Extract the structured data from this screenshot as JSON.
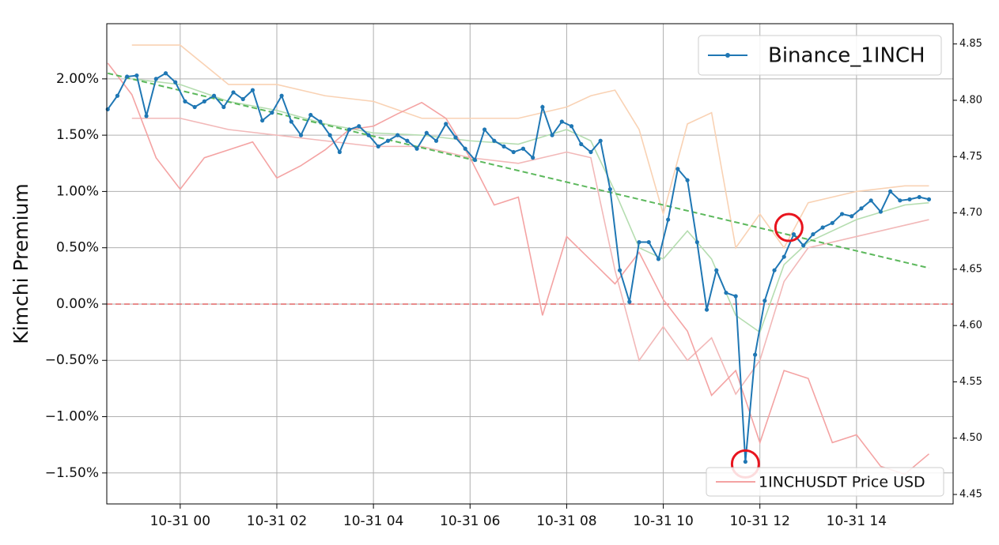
{
  "chart_data": {
    "type": "line",
    "ylabel": "Kimchi Premium",
    "xlim": [
      -1.52,
      16.0
    ],
    "xticks": [
      {
        "value": 0,
        "label": "10-31 00"
      },
      {
        "value": 2,
        "label": "10-31 02"
      },
      {
        "value": 4,
        "label": "10-31 04"
      },
      {
        "value": 6,
        "label": "10-31 06"
      },
      {
        "value": 8,
        "label": "10-31 08"
      },
      {
        "value": 10,
        "label": "10-31 10"
      },
      {
        "value": 12,
        "label": "10-31 12"
      },
      {
        "value": 14,
        "label": "10-31 14"
      }
    ],
    "ylim": [
      -1.775,
      2.49
    ],
    "yticks": [
      {
        "value": -1.5,
        "label": "−1.50%"
      },
      {
        "value": -1,
        "label": "−1.00%"
      },
      {
        "value": -0.5,
        "label": "−0.50%"
      },
      {
        "value": 0,
        "label": "0.00%"
      },
      {
        "value": 0.5,
        "label": "0.50%"
      },
      {
        "value": 1,
        "label": "1.00%"
      },
      {
        "value": 1.5,
        "label": "1.50%"
      },
      {
        "value": 2,
        "label": "2.00%"
      }
    ],
    "y2lim": [
      4.4416,
      4.868
    ],
    "y2ticks": [
      4.45,
      {
        "value": 4.5,
        "label": "4.50"
      },
      4.55,
      {
        "value": 4.6,
        "label": "4.60"
      },
      4.65,
      {
        "value": 4.7,
        "label": "4.70"
      },
      4.75,
      {
        "value": 4.8,
        "label": "4.80"
      },
      4.85
    ],
    "grid": true,
    "series": [
      {
        "color": "#f9d2b4",
        "x": [
          -1,
          0,
          1,
          2,
          3,
          4,
          5,
          6,
          7,
          8,
          8.5,
          9,
          9.5,
          10,
          10.5,
          11,
          11.5,
          12,
          12.5,
          13,
          14,
          15,
          15.5
        ],
        "values": [
          2.3,
          2.3,
          1.95,
          1.95,
          1.85,
          1.8,
          1.65,
          1.65,
          1.65,
          1.75,
          1.85,
          1.9,
          1.55,
          0.8,
          1.6,
          1.7,
          0.5,
          0.8,
          0.5,
          0.9,
          1.0,
          1.05,
          1.05
        ]
      },
      {
        "color": "#f2b8b8",
        "x": [
          -1,
          0,
          1,
          2,
          3,
          4,
          5,
          6,
          7,
          8,
          8.5,
          9,
          9.5,
          10,
          10.5,
          11,
          11.5,
          12,
          12.5,
          13,
          14,
          15,
          15.5
        ],
        "values": [
          1.65,
          1.65,
          1.55,
          1.5,
          1.45,
          1.4,
          1.4,
          1.3,
          1.25,
          1.35,
          1.3,
          0.3,
          -0.5,
          -0.2,
          -0.5,
          -0.3,
          -0.8,
          -0.5,
          0.2,
          0.5,
          0.6,
          0.7,
          0.75
        ]
      },
      {
        "color": "#b5ddb0",
        "x": [
          -1,
          0,
          1,
          2,
          3,
          4,
          5,
          6,
          7,
          8,
          8.5,
          9,
          9.5,
          10,
          10.5,
          11,
          11.5,
          12,
          12.5,
          13,
          14,
          15,
          15.5
        ],
        "values": [
          2.0,
          1.95,
          1.8,
          1.72,
          1.6,
          1.52,
          1.5,
          1.45,
          1.42,
          1.55,
          1.45,
          1.0,
          0.5,
          0.4,
          0.65,
          0.4,
          -0.1,
          -0.25,
          0.35,
          0.55,
          0.75,
          0.88,
          0.9
        ]
      },
      {
        "name": "1INCHUSDT Price USD",
        "color": "#f4a3a3",
        "axis": "y2",
        "x": [
          -1.5,
          -1,
          -0.5,
          0,
          0.5,
          1,
          1.5,
          2,
          2.5,
          3,
          3.5,
          4,
          4.5,
          5,
          5.5,
          6,
          6.5,
          7,
          7.5,
          8,
          8.5,
          9,
          9.5,
          10,
          10.5,
          11,
          11.5,
          12,
          12.5,
          13,
          13.5,
          14,
          14.5,
          15,
          15.5
        ],
        "values": [
          4.833,
          4.805,
          4.749,
          4.721,
          4.749,
          4.756,
          4.763,
          4.731,
          4.742,
          4.756,
          4.774,
          4.777,
          4.788,
          4.798,
          4.784,
          4.749,
          4.707,
          4.714,
          4.609,
          4.679,
          4.658,
          4.637,
          4.665,
          4.623,
          4.595,
          4.538,
          4.56,
          4.496,
          4.56,
          4.553,
          4.496,
          4.503,
          4.475,
          4.468,
          4.486
        ]
      },
      {
        "color": "#5cb85c",
        "dashed": true,
        "x": [
          -1.5,
          15.5
        ],
        "values": [
          2.05,
          0.32
        ]
      },
      {
        "name": "Binance_1INCH",
        "color": "#1f77b4",
        "markers": true,
        "x": [
          -1.5,
          -1.3,
          -1.1,
          -0.9,
          -0.7,
          -0.5,
          -0.3,
          -0.1,
          0.1,
          0.3,
          0.5,
          0.7,
          0.9,
          1.1,
          1.3,
          1.5,
          1.7,
          1.9,
          2.1,
          2.3,
          2.5,
          2.7,
          2.9,
          3.1,
          3.3,
          3.5,
          3.7,
          3.9,
          4.1,
          4.3,
          4.5,
          4.7,
          4.9,
          5.1,
          5.3,
          5.5,
          5.7,
          5.9,
          6.1,
          6.3,
          6.5,
          6.7,
          6.9,
          7.1,
          7.3,
          7.5,
          7.7,
          7.9,
          8.1,
          8.3,
          8.5,
          8.7,
          8.9,
          9.1,
          9.3,
          9.5,
          9.7,
          9.9,
          10.1,
          10.3,
          10.5,
          10.7,
          10.9,
          11.1,
          11.3,
          11.5,
          11.7,
          11.9,
          12.1,
          12.3,
          12.5,
          12.7,
          12.9,
          13.1,
          13.3,
          13.5,
          13.7,
          13.9,
          14.1,
          14.3,
          14.5,
          14.7,
          14.9,
          15.1,
          15.3,
          15.5
        ],
        "values": [
          1.73,
          1.85,
          2.02,
          2.03,
          1.67,
          2.0,
          2.05,
          1.97,
          1.8,
          1.75,
          1.8,
          1.85,
          1.75,
          1.88,
          1.82,
          1.9,
          1.63,
          1.7,
          1.85,
          1.62,
          1.5,
          1.68,
          1.62,
          1.5,
          1.35,
          1.55,
          1.58,
          1.5,
          1.4,
          1.45,
          1.5,
          1.45,
          1.38,
          1.52,
          1.45,
          1.6,
          1.48,
          1.38,
          1.28,
          1.55,
          1.45,
          1.4,
          1.35,
          1.38,
          1.3,
          1.75,
          1.5,
          1.62,
          1.58,
          1.42,
          1.35,
          1.45,
          1.02,
          0.3,
          0.02,
          0.55,
          0.55,
          0.4,
          0.75,
          1.2,
          1.1,
          0.55,
          -0.05,
          0.3,
          0.1,
          0.07,
          -1.4,
          -0.45,
          0.03,
          0.3,
          0.42,
          0.62,
          0.52,
          0.62,
          0.68,
          0.72,
          0.8,
          0.78,
          0.85,
          0.92,
          0.82,
          1.0,
          0.92,
          0.93,
          0.95,
          0.93
        ]
      }
    ],
    "hlines": [
      {
        "value": 0,
        "color": "#e06666"
      }
    ],
    "highlights": {
      "color": "#e8141e",
      "x": [
        12.6,
        11.7
      ],
      "values": [
        0.68,
        -1.42
      ]
    }
  }
}
